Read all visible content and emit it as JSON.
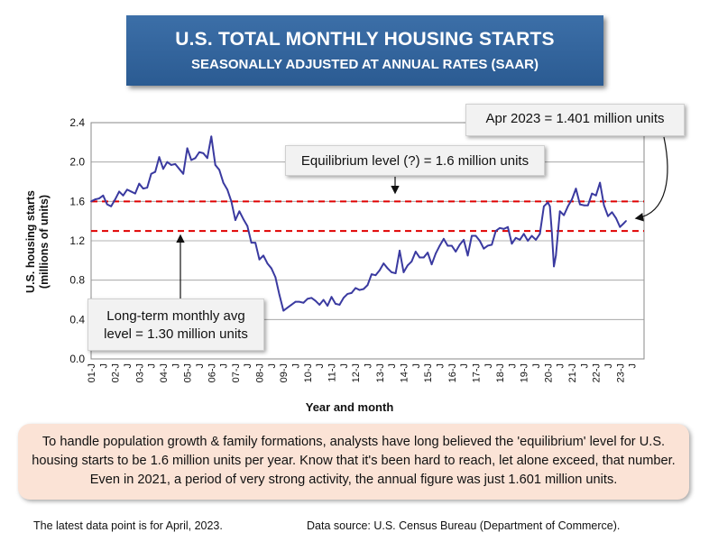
{
  "header": {
    "title": "U.S. TOTAL MONTHLY HOUSING STARTS",
    "subtitle": "SEASONALLY ADJUSTED AT ANNUAL RATES (SAAR)"
  },
  "callouts": {
    "latest": "Apr 2023 = 1.401 million units",
    "equilibrium": "Equilibrium level (?) = 1.6 million units",
    "longterm_line1": "Long-term monthly avg",
    "longterm_line2": "level = 1.30 million units"
  },
  "note": "To handle population growth & family formations, analysts have long believed the 'equilibrium' level for U.S. housing starts to be 1.6 million units per year. Know that it's been hard to reach, let alone exceed, that number. Even in 2021, a period of very strong activity, the annual figure was just 1.601 million units.",
  "footer": {
    "latest": "The latest data point is for April, 2023.",
    "source": "Data source: U.S. Census Bureau (Department of Commerce)."
  },
  "colors": {
    "line": "#3a3aa0",
    "reference": "#e00000",
    "title_bg": "#2f5f97",
    "note_bg": "#fbe3d6"
  },
  "chart_data": {
    "type": "line",
    "xlabel": "Year and month",
    "ylabel_line1": "U.S. housing starts",
    "ylabel_line2": "(millions of units)",
    "ylim": [
      0.0,
      2.4
    ],
    "yticks": [
      "0.0",
      "0.4",
      "0.8",
      "1.2",
      "1.6",
      "2.0",
      "2.4"
    ],
    "xticks": [
      "01-J",
      "J",
      "02-J",
      "J",
      "03-J",
      "J",
      "04-J",
      "J",
      "05-J",
      "J",
      "06-J",
      "J",
      "07-J",
      "J",
      "08-J",
      "J",
      "09-J",
      "J",
      "10-J",
      "J",
      "11-J",
      "J",
      "12-J",
      "J",
      "13-J",
      "J",
      "14-J",
      "J",
      "15-J",
      "J",
      "16-J",
      "J",
      "17-J",
      "J",
      "18-J",
      "J",
      "19-J",
      "J",
      "20-J",
      "J",
      "21-J",
      "J",
      "22-J",
      "J",
      "23-J",
      "J"
    ],
    "grid": "horizontal",
    "reference_lines": [
      {
        "value": 1.6,
        "style": "dashed"
      },
      {
        "value": 1.3,
        "style": "dashed"
      }
    ],
    "series": [
      {
        "x": [
          "2001-01",
          "2001-03",
          "2001-05",
          "2001-07",
          "2001-09",
          "2001-11",
          "2002-01",
          "2002-03",
          "2002-05",
          "2002-07",
          "2002-09",
          "2002-11",
          "2003-01",
          "2003-03",
          "2003-05",
          "2003-07",
          "2003-09",
          "2003-11",
          "2004-01",
          "2004-03",
          "2004-05",
          "2004-07",
          "2004-09",
          "2004-11",
          "2005-01",
          "2005-03",
          "2005-05",
          "2005-07",
          "2005-09",
          "2005-11",
          "2006-01",
          "2006-03",
          "2006-05",
          "2006-07",
          "2006-09",
          "2006-11",
          "2007-01",
          "2007-03",
          "2007-05",
          "2007-07",
          "2007-09",
          "2007-11",
          "2008-01",
          "2008-03",
          "2008-05",
          "2008-07",
          "2008-09",
          "2008-11",
          "2009-01",
          "2009-03",
          "2009-05",
          "2009-07",
          "2009-09",
          "2009-11",
          "2010-01",
          "2010-03",
          "2010-05",
          "2010-07",
          "2010-09",
          "2010-11",
          "2011-01",
          "2011-03",
          "2011-05",
          "2011-07",
          "2011-09",
          "2011-11",
          "2012-01",
          "2012-03",
          "2012-05",
          "2012-07",
          "2012-09",
          "2012-11",
          "2013-01",
          "2013-03",
          "2013-05",
          "2013-07",
          "2013-09",
          "2013-11",
          "2014-01",
          "2014-03",
          "2014-05",
          "2014-07",
          "2014-09",
          "2014-11",
          "2015-01",
          "2015-03",
          "2015-05",
          "2015-07",
          "2015-09",
          "2015-11",
          "2016-01",
          "2016-03",
          "2016-05",
          "2016-07",
          "2016-09",
          "2016-11",
          "2017-01",
          "2017-03",
          "2017-05",
          "2017-07",
          "2017-09",
          "2017-11",
          "2018-01",
          "2018-03",
          "2018-05",
          "2018-07",
          "2018-09",
          "2018-11",
          "2019-01",
          "2019-03",
          "2019-05",
          "2019-07",
          "2019-09",
          "2019-11",
          "2020-01",
          "2020-02",
          "2020-03",
          "2020-04",
          "2020-05",
          "2020-07",
          "2020-09",
          "2020-11",
          "2021-01",
          "2021-03",
          "2021-05",
          "2021-07",
          "2021-09",
          "2021-11",
          "2022-01",
          "2022-03",
          "2022-05",
          "2022-07",
          "2022-09",
          "2022-11",
          "2023-01",
          "2023-03",
          "2023-04"
        ],
        "y": [
          1.6,
          1.62,
          1.63,
          1.66,
          1.57,
          1.55,
          1.62,
          1.7,
          1.66,
          1.72,
          1.7,
          1.68,
          1.78,
          1.73,
          1.74,
          1.88,
          1.9,
          2.05,
          1.93,
          2.0,
          1.97,
          1.98,
          1.93,
          1.88,
          2.14,
          2.02,
          2.04,
          2.1,
          2.09,
          2.04,
          2.26,
          1.97,
          1.92,
          1.79,
          1.72,
          1.6,
          1.41,
          1.5,
          1.42,
          1.35,
          1.18,
          1.18,
          1.01,
          1.05,
          0.97,
          0.92,
          0.83,
          0.65,
          0.49,
          0.52,
          0.55,
          0.58,
          0.58,
          0.57,
          0.61,
          0.62,
          0.59,
          0.55,
          0.6,
          0.54,
          0.63,
          0.56,
          0.55,
          0.62,
          0.66,
          0.67,
          0.72,
          0.7,
          0.71,
          0.75,
          0.86,
          0.85,
          0.9,
          0.97,
          0.92,
          0.88,
          0.87,
          1.1,
          0.88,
          0.95,
          0.99,
          1.09,
          1.03,
          1.03,
          1.08,
          0.96,
          1.07,
          1.15,
          1.22,
          1.15,
          1.15,
          1.09,
          1.16,
          1.21,
          1.05,
          1.25,
          1.25,
          1.2,
          1.12,
          1.15,
          1.16,
          1.3,
          1.33,
          1.32,
          1.34,
          1.17,
          1.23,
          1.21,
          1.27,
          1.2,
          1.25,
          1.21,
          1.27,
          1.55,
          1.59,
          1.55,
          1.28,
          0.94,
          1.05,
          1.5,
          1.46,
          1.55,
          1.62,
          1.73,
          1.57,
          1.56,
          1.56,
          1.68,
          1.66,
          1.79,
          1.56,
          1.45,
          1.49,
          1.43,
          1.34,
          1.38,
          1.401
        ]
      }
    ]
  }
}
